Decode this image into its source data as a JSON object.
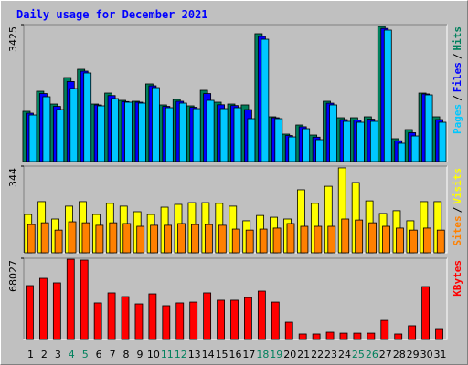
{
  "chart_data": [
    {
      "type": "bar",
      "title": "Daily usage for December 2021",
      "ylim": [
        0,
        3425
      ],
      "yticks": [
        3425
      ],
      "legend_separator": "/",
      "series": [
        {
          "name": "Hits",
          "color": "#00805c",
          "values": [
            1256,
            1758,
            1438,
            2100,
            2306,
            1438,
            1712,
            1530,
            1507,
            1941,
            1416,
            1553,
            1393,
            1781,
            1484,
            1438,
            1416,
            3197,
            1119,
            685,
            913,
            662,
            1507,
            1096,
            1096,
            1119,
            3379,
            571,
            799,
            1712,
            1119
          ]
        },
        {
          "name": "Files",
          "color": "#0000ff",
          "values": [
            1210,
            1700,
            1380,
            2000,
            2260,
            1415,
            1650,
            1500,
            1484,
            1895,
            1380,
            1507,
            1358,
            1700,
            1420,
            1400,
            1300,
            3130,
            1096,
            650,
            870,
            610,
            1460,
            1050,
            1040,
            1060,
            3330,
            520,
            720,
            1690,
            1050
          ]
        },
        {
          "name": "Pages",
          "color": "#00c8ff",
          "values": [
            1164,
            1621,
            1301,
            1826,
            2215,
            1393,
            1575,
            1484,
            1461,
            1849,
            1347,
            1461,
            1324,
            1530,
            1324,
            1347,
            1073,
            3059,
            1073,
            616,
            822,
            548,
            1416,
            1005,
            982,
            1005,
            3288,
            457,
            639,
            1667,
            982
          ]
        }
      ]
    },
    {
      "type": "bar",
      "ylim": [
        0,
        344
      ],
      "yticks": [
        344
      ],
      "legend_separator": "/",
      "series": [
        {
          "name": "Visits",
          "color": "#ffff00",
          "values": [
            152,
            203,
            134,
            185,
            203,
            152,
            196,
            185,
            163,
            152,
            181,
            192,
            199,
            199,
            196,
            185,
            127,
            148,
            141,
            134,
            250,
            196,
            264,
            337,
            279,
            206,
            156,
            167,
            127,
            203,
            203
          ]
        },
        {
          "name": "Sites",
          "color": "#ff8000",
          "values": [
            112,
            119,
            90,
            123,
            119,
            109,
            119,
            116,
            105,
            109,
            109,
            116,
            112,
            112,
            109,
            94,
            90,
            94,
            98,
            116,
            105,
            105,
            105,
            134,
            130,
            119,
            105,
            98,
            90,
            98,
            90
          ]
        }
      ]
    },
    {
      "type": "bar",
      "ylim": [
        0,
        68027
      ],
      "yticks": [
        68027
      ],
      "categories": [
        "1",
        "2",
        "3",
        "4",
        "5",
        "6",
        "7",
        "8",
        "9",
        "10",
        "11",
        "12",
        "13",
        "14",
        "15",
        "16",
        "17",
        "18",
        "19",
        "20",
        "21",
        "22",
        "23",
        "24",
        "25",
        "26",
        "27",
        "28",
        "29",
        "30",
        "31"
      ],
      "category_colors": [
        "#000000",
        "#000000",
        "#000000",
        "#00805c",
        "#00805c",
        "#000000",
        "#000000",
        "#000000",
        "#000000",
        "#000000",
        "#00805c",
        "#00805c",
        "#000000",
        "#000000",
        "#000000",
        "#000000",
        "#000000",
        "#00805c",
        "#00805c",
        "#000000",
        "#000000",
        "#000000",
        "#000000",
        "#000000",
        "#00805c",
        "#00805c",
        "#000000",
        "#000000",
        "#000000",
        "#000000",
        "#000000"
      ],
      "series": [
        {
          "name": "KBytes",
          "color": "#ff0000",
          "values": [
            45100,
            51200,
            47400,
            67200,
            66500,
            30600,
            39000,
            35900,
            29800,
            38200,
            28300,
            30600,
            31300,
            39000,
            32900,
            32900,
            35100,
            40500,
            31300,
            14500,
            4600,
            4600,
            6100,
            5300,
            5300,
            5300,
            16000,
            4600,
            11500,
            44300,
            8400
          ]
        }
      ]
    }
  ]
}
